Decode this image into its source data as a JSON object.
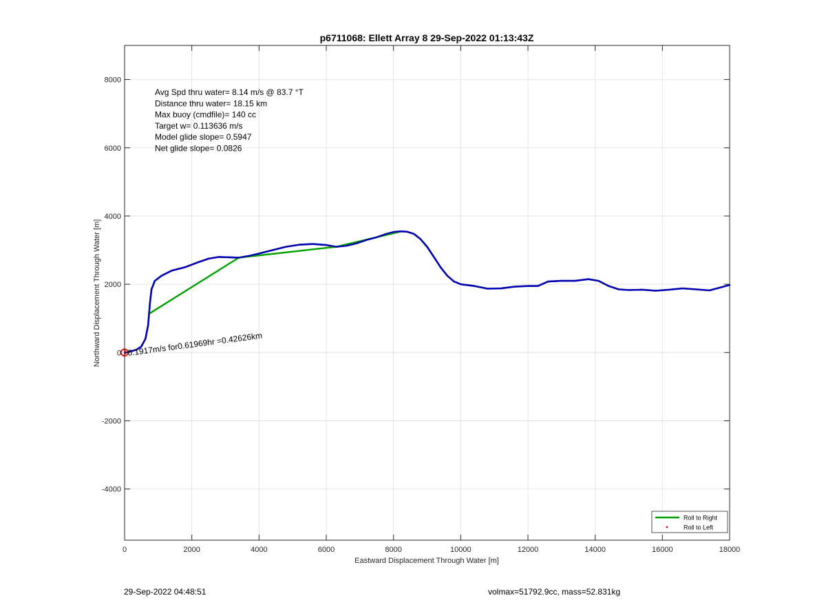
{
  "chart_data": {
    "type": "line",
    "title": "p6711068: Ellett Array 8 29-Sep-2022 01:13:43Z",
    "xlabel": "Eastward Displacement Through Water [m]",
    "ylabel": "Northward Displacement Through Water [m]",
    "xlim": [
      0,
      18000
    ],
    "ylim": [
      -5500,
      9000
    ],
    "xticks": [
      0,
      2000,
      4000,
      6000,
      8000,
      10000,
      12000,
      14000,
      16000,
      18000
    ],
    "yticks": [
      -4000,
      -2000,
      0,
      2000,
      4000,
      6000,
      8000
    ],
    "grid": true,
    "annotations": [
      "Avg Spd thru water=  8.14 m/s @  83.7 °T",
      "Distance thru water= 18.15 km",
      "Max buoy (cmdfile)= 140 cc",
      "Target w= 0.113636 m/s",
      "Model glide slope= 0.5947",
      "Net glide slope= 0.0826"
    ],
    "slanted_label": "0.1917m/s for0.61969hr =0.42626km",
    "legend": {
      "placement": "bottom-right",
      "entries": [
        {
          "label": "Roll to Right",
          "color": "#00a000",
          "style": "line"
        },
        {
          "label": "Roll to Left",
          "color": "#ff0000",
          "style": "dot"
        }
      ]
    },
    "series": [
      {
        "color": "#0000b0",
        "x": [
          0,
          100,
          200,
          350,
          500,
          620,
          700,
          750,
          800,
          900,
          1100,
          1400,
          1800,
          2200,
          2500,
          2800,
          3100,
          3400,
          3700,
          4000,
          4400,
          4800,
          5200,
          5600,
          6000,
          6300,
          6600,
          6900,
          7200,
          7500,
          7800,
          8000,
          8200,
          8400,
          8600,
          8800,
          9000,
          9200,
          9400,
          9600,
          9800,
          10000,
          10400,
          10800,
          11200,
          11600,
          12000,
          12300,
          12600,
          13000,
          13400,
          13800,
          14100,
          14400,
          14700,
          15000,
          15400,
          15800,
          16200,
          16600,
          17000,
          17400,
          17700,
          18000
        ],
        "y": [
          0,
          10,
          40,
          80,
          180,
          400,
          800,
          1400,
          1850,
          2100,
          2250,
          2400,
          2500,
          2650,
          2750,
          2800,
          2790,
          2780,
          2830,
          2900,
          3000,
          3100,
          3160,
          3180,
          3150,
          3100,
          3130,
          3200,
          3300,
          3380,
          3480,
          3530,
          3550,
          3540,
          3480,
          3330,
          3100,
          2800,
          2500,
          2250,
          2080,
          2000,
          1950,
          1870,
          1880,
          1930,
          1950,
          1950,
          2080,
          2100,
          2100,
          2150,
          2100,
          1950,
          1850,
          1830,
          1840,
          1810,
          1840,
          1880,
          1850,
          1820,
          1900,
          1980
        ]
      },
      {
        "name": "Roll to Right",
        "color": "#00a000",
        "x": [
          750,
          3400,
          6300,
          8200
        ],
        "y": [
          1150,
          2780,
          3100,
          3540
        ]
      }
    ],
    "start_marker": {
      "x": 0,
      "y": 0,
      "color": "#ff0000"
    }
  },
  "footer": {
    "left": "29-Sep-2022 04:48:51",
    "right": "volmax=51792.9cc, mass=52.831kg"
  }
}
